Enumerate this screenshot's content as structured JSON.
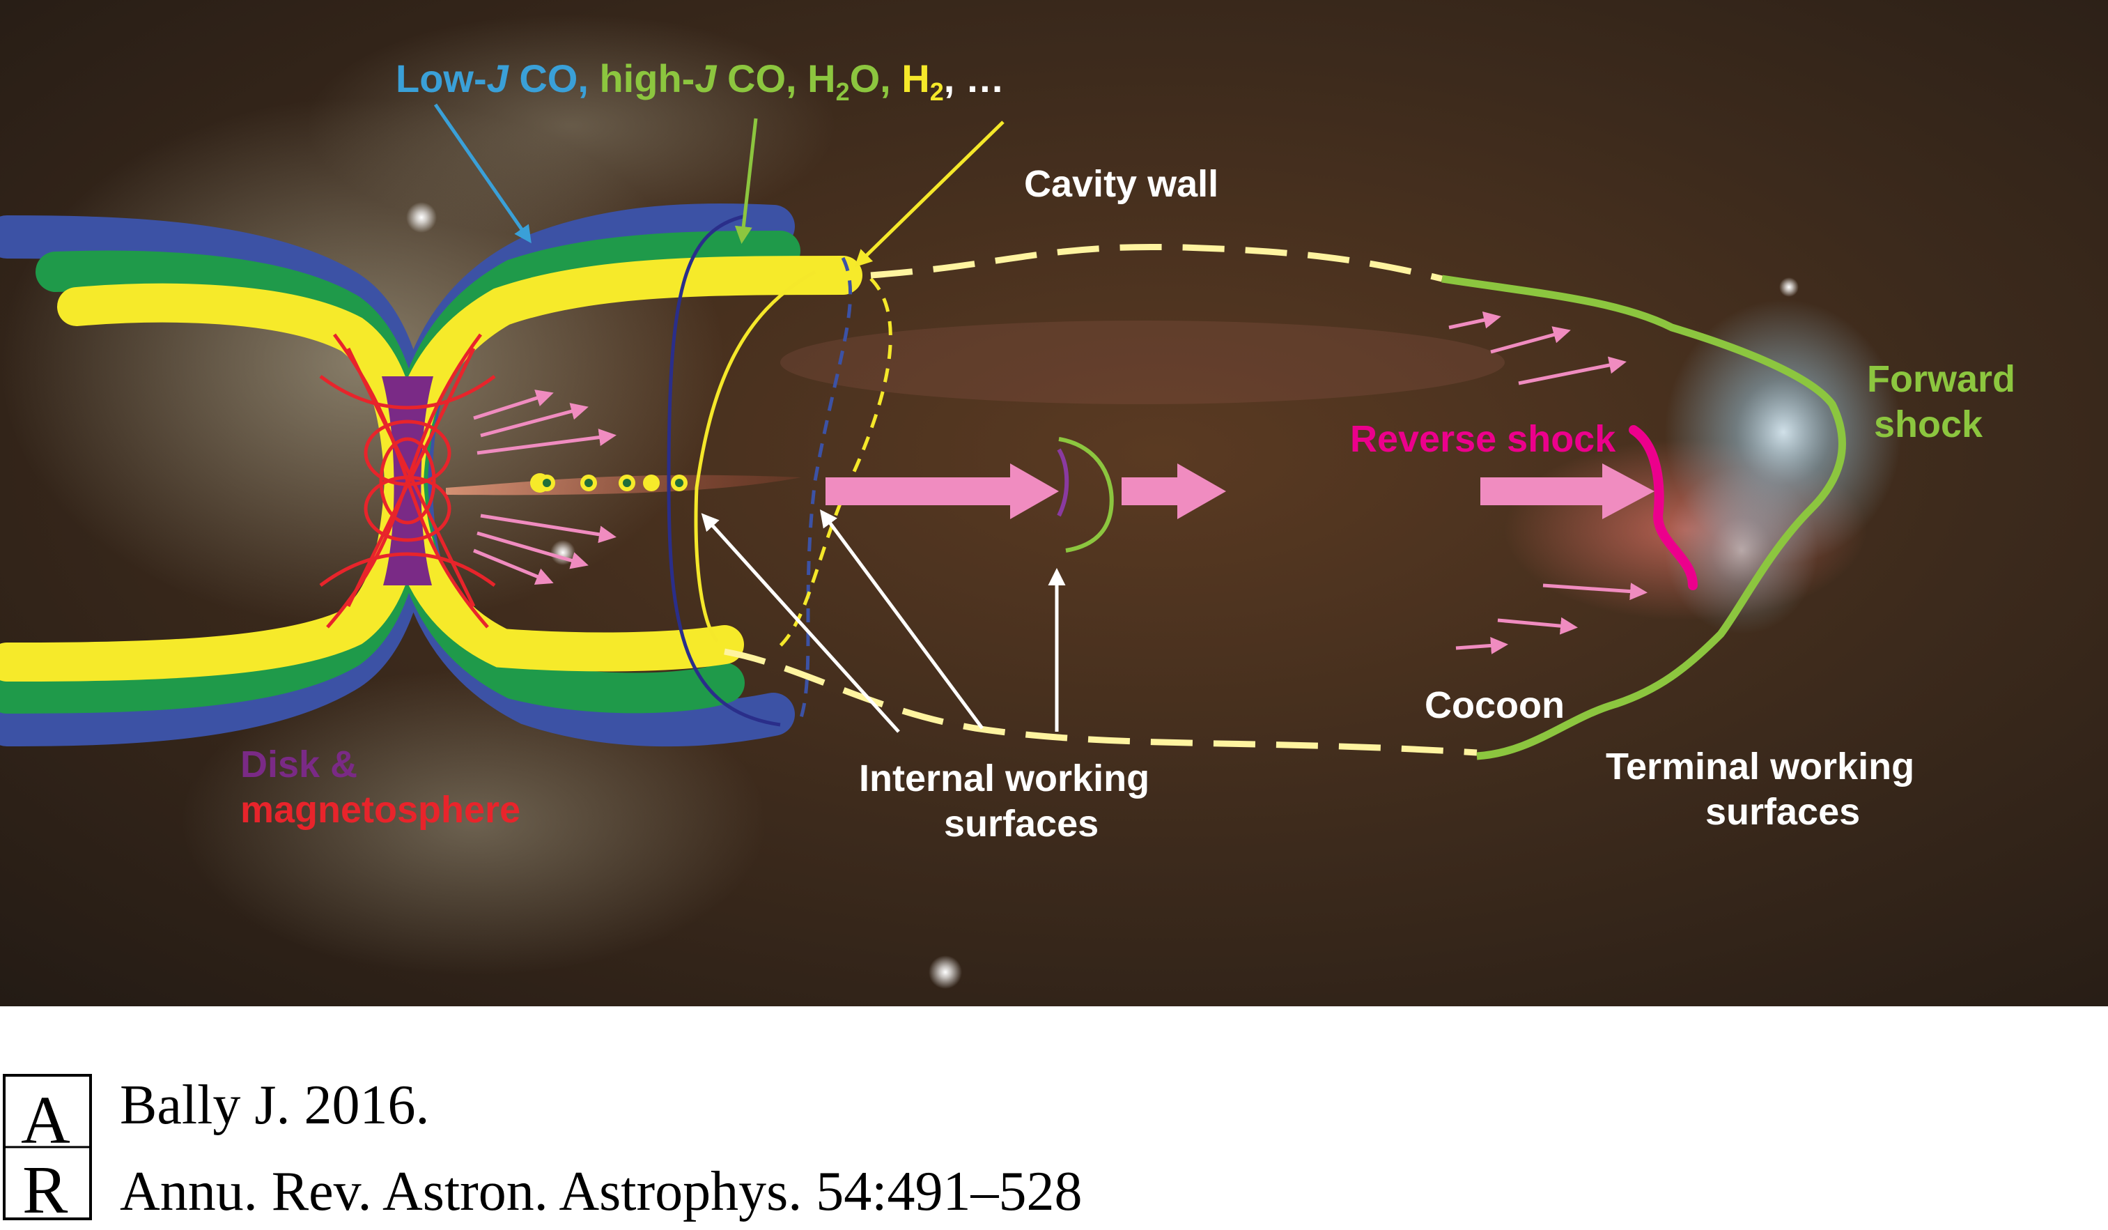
{
  "labels": {
    "tracers": {
      "low_j": "Low-",
      "j1": "J",
      "low_j_co": " CO,",
      "high_j": " high-",
      "j2": "J",
      "high_j_co": " CO, H",
      "h2o_sub": "2",
      "h2o_o": "O,",
      "h2": " H",
      "h2_sub": "2",
      "ellipsis": ", …"
    },
    "cavity_wall": "Cavity wall",
    "forward_shock_1": "Forward",
    "forward_shock_2": "shock",
    "reverse_shock": "Reverse shock",
    "cocoon": "Cocoon",
    "terminal_1": "Terminal working",
    "terminal_2": "surfaces",
    "internal_1": "Internal working",
    "internal_2": "surfaces",
    "disk_1": "Disk &",
    "disk_2": "magnetosphere"
  },
  "citation": {
    "logo_letters": "AR",
    "line1": "Bally J. 2016.",
    "line2": "Annu. Rev. Astron. Astrophys. 54:491–528"
  },
  "colors": {
    "low_j_co": "#3aa0d8",
    "high_j_co": "#8cc63f",
    "h2": "#f5e82a",
    "white_text": "#ffffff",
    "reverse_shock": "#ec008c",
    "forward_shock": "#8cc63f",
    "disk": "#7a2a86",
    "magnetosphere": "#e8242b",
    "outflow_blue": "#3c52a5",
    "outflow_green": "#1f9a4a",
    "outflow_yellow": "#f6ea2a",
    "jet_arrow_pink": "#f08cc0"
  }
}
